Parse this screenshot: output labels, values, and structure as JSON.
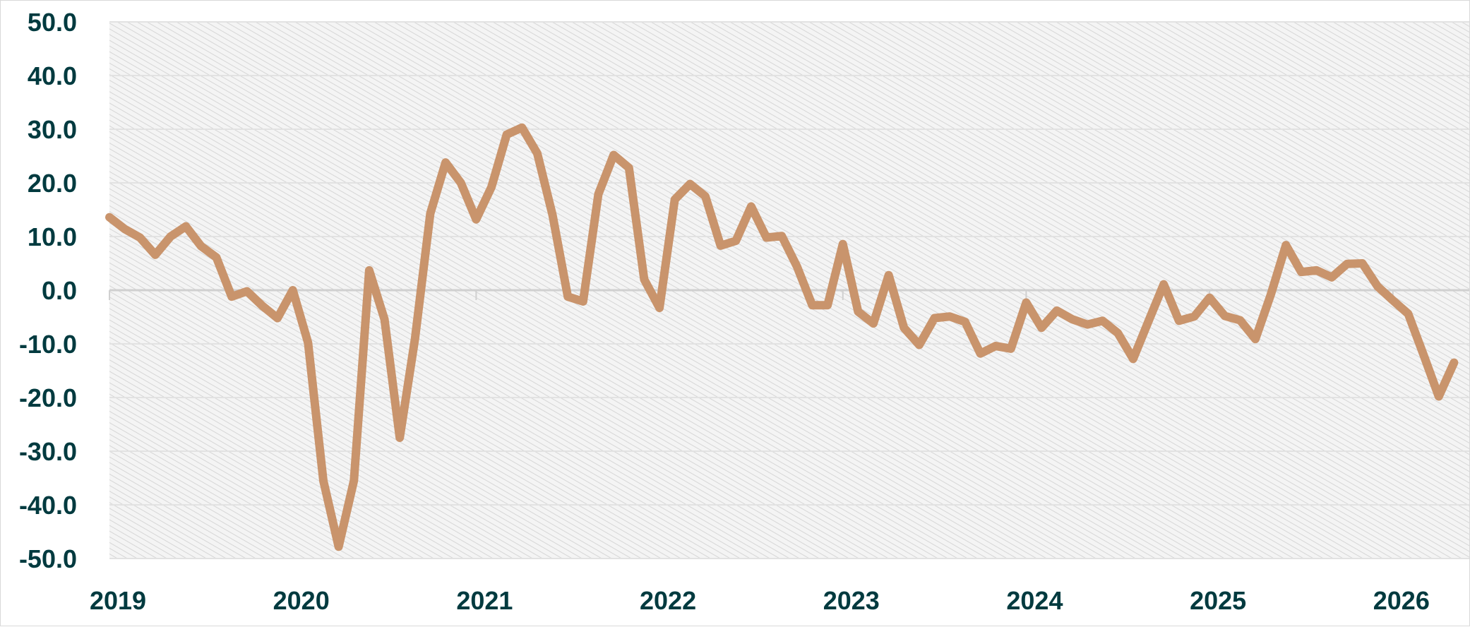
{
  "chart_data": {
    "type": "line",
    "title": "",
    "xlabel": "",
    "ylabel": "",
    "ylim": [
      -50,
      50
    ],
    "xlim": [
      "2019-01",
      "2026-06"
    ],
    "yticks": [
      "50.0",
      "40.0",
      "30.0",
      "20.0",
      "10.0",
      "0.0",
      "-10.0",
      "-20.0",
      "-30.0",
      "-40.0",
      "-50.0"
    ],
    "xticks": [
      "2019",
      "2020",
      "2021",
      "2022",
      "2023",
      "2024",
      "2025",
      "2026"
    ],
    "grid": true,
    "legend": "none",
    "series": [
      {
        "color": "#c9946c",
        "x": [
          "2019-01",
          "2019-02",
          "2019-03",
          "2019-04",
          "2019-05",
          "2019-06",
          "2019-07",
          "2019-08",
          "2019-09",
          "2019-10",
          "2019-11",
          "2019-12",
          "2020-01",
          "2020-02",
          "2020-03",
          "2020-04",
          "2020-05",
          "2020-06",
          "2020-07",
          "2020-08",
          "2020-09",
          "2020-10",
          "2020-11",
          "2020-12",
          "2021-01",
          "2021-02",
          "2021-03",
          "2021-04",
          "2021-05",
          "2021-06",
          "2021-07",
          "2021-08",
          "2021-09",
          "2021-10",
          "2021-11",
          "2021-12",
          "2022-01",
          "2022-02",
          "2022-03",
          "2022-04",
          "2022-05",
          "2022-06",
          "2022-07",
          "2022-08",
          "2022-09",
          "2022-10",
          "2022-11",
          "2022-12",
          "2023-01",
          "2023-02",
          "2023-03",
          "2023-04",
          "2023-05",
          "2023-06",
          "2023-07",
          "2023-08",
          "2023-09",
          "2023-10",
          "2023-11",
          "2023-12",
          "2024-01",
          "2024-02",
          "2024-03",
          "2024-04",
          "2024-05",
          "2024-06",
          "2024-07",
          "2024-08",
          "2024-09",
          "2024-10",
          "2024-11",
          "2024-12",
          "2025-01",
          "2025-02",
          "2025-03",
          "2025-04",
          "2025-05",
          "2025-06",
          "2025-07",
          "2025-08",
          "2025-09",
          "2025-10",
          "2025-11",
          "2025-12",
          "2026-01",
          "2026-02",
          "2026-03",
          "2026-04",
          "2026-05"
        ],
        "values": [
          13.6,
          11.4,
          9.8,
          6.6,
          10.0,
          11.9,
          8.2,
          6.1,
          -1.2,
          -0.2,
          -2.9,
          -5.2,
          0.0,
          -9.8,
          -35.5,
          -47.8,
          -35.5,
          3.7,
          -5.4,
          -27.5,
          -9.0,
          14.3,
          23.8,
          20.0,
          13.2,
          19.2,
          29.0,
          30.3,
          25.5,
          14.0,
          -1.2,
          -2.1,
          17.9,
          25.2,
          22.8,
          2.0,
          -3.3,
          16.9,
          19.8,
          17.5,
          8.3,
          9.2,
          15.6,
          9.8,
          10.1,
          4.4,
          -2.8,
          -2.8,
          8.6,
          -4.0,
          -6.2,
          2.8,
          -7.0,
          -10.2,
          -5.2,
          -4.9,
          -5.9,
          -11.8,
          -10.4,
          -10.9,
          -2.3,
          -7.0,
          -3.8,
          -5.4,
          -6.4,
          -5.7,
          -8.0,
          -12.8,
          -5.8,
          1.1,
          -5.7,
          -4.9,
          -1.4,
          -4.8,
          -5.6,
          -9.1,
          -0.9,
          8.4,
          3.4,
          3.7,
          2.4,
          4.9,
          5.0,
          0.7,
          -1.9,
          -4.4,
          -12.0,
          -19.8,
          -13.5
        ]
      }
    ]
  }
}
